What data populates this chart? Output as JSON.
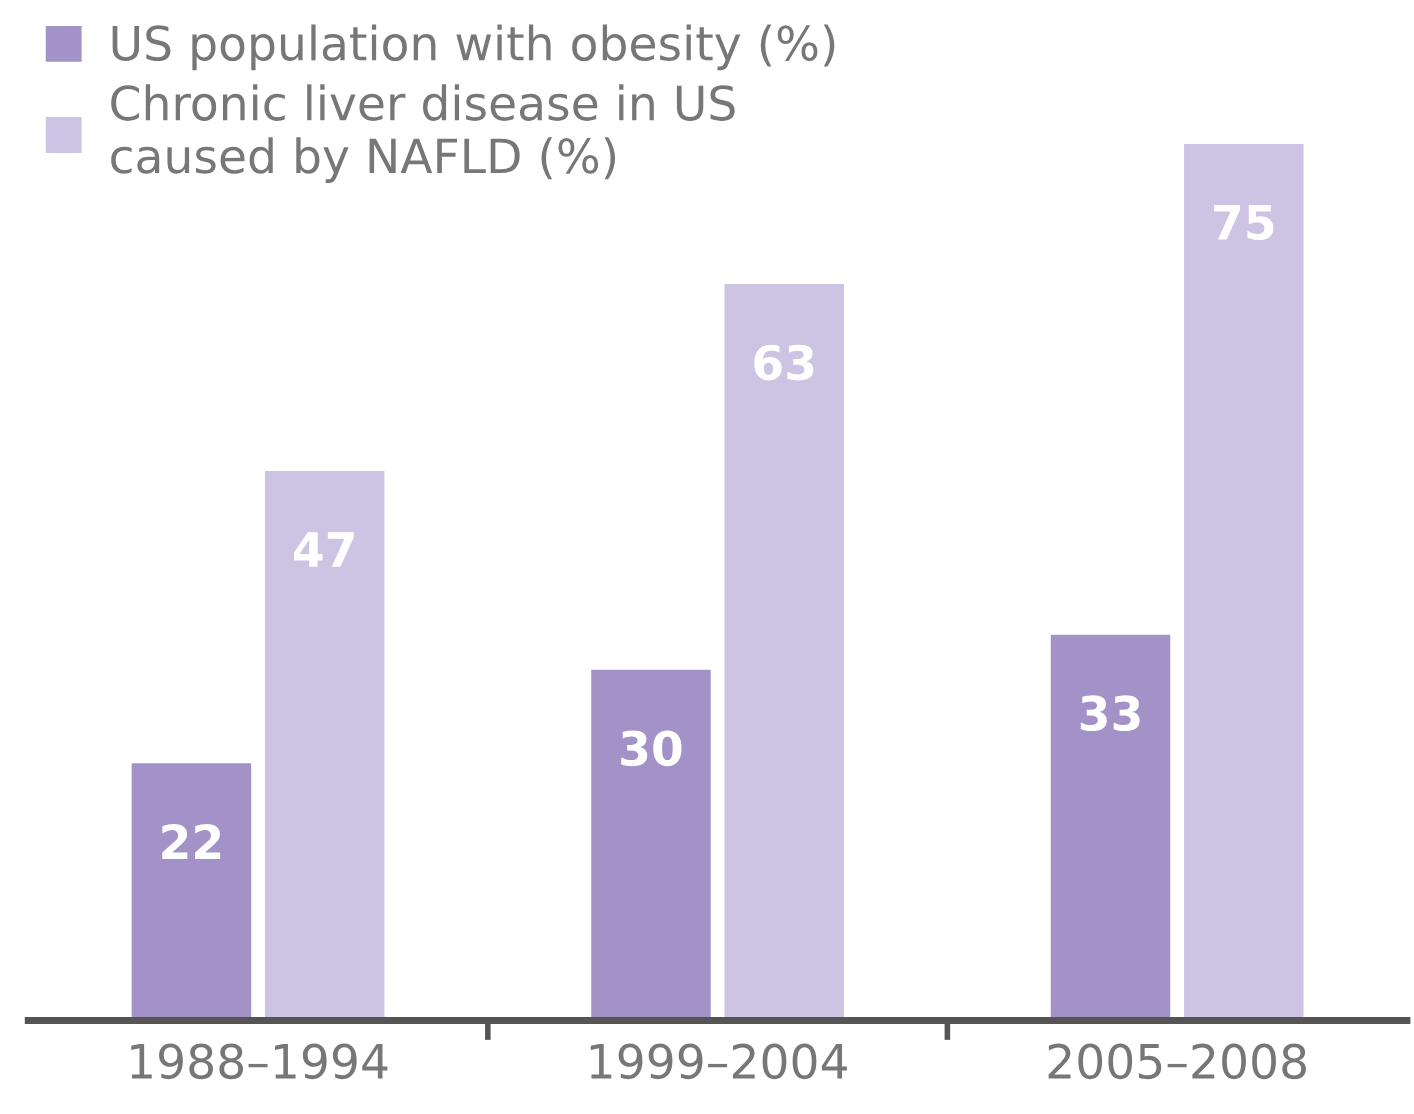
{
  "chart_data": {
    "type": "bar",
    "categories": [
      "1988–1994",
      "1999–2004",
      "2005–2008"
    ],
    "series": [
      {
        "name": "US population with obesity (%)",
        "color": "#a392c8",
        "values": [
          22,
          30,
          33
        ]
      },
      {
        "name": "Chronic liver disease in US\ncaused by NAFLD (%)",
        "color": "#cdc3e3",
        "values": [
          47,
          63,
          75
        ]
      }
    ],
    "data_labels": true,
    "legend": "top left",
    "grid": false
  }
}
